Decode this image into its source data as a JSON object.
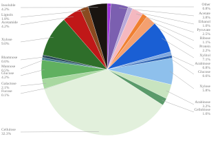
{
  "chart_data": {
    "type": "pie",
    "categories": [
      "Other",
      "Acetate",
      "Ethanol",
      "Pyruvate",
      "Ribose",
      "Protein",
      "Xylitol",
      "Arabinose",
      "Glucose",
      "Xylose",
      "Arabinose",
      "Cellobiose",
      "Cellulose",
      "Fucose",
      "Galactose",
      "Glucose",
      "Mannose",
      "Rhamnose",
      "Xylose",
      "Acetamide",
      "Lignols",
      "Insoluble"
    ],
    "values": [
      0.8,
      3.8,
      1.0,
      2.5,
      1.1,
      2.2,
      7.1,
      0.8,
      0.6,
      5.8,
      3.2,
      1.6,
      32.3,
      0.1,
      2.1,
      4.2,
      0.5,
      0.6,
      9.0,
      4.2,
      1.8,
      4.2
    ],
    "value_labels": [
      "0.8%",
      "3.8%",
      "1.0%",
      "2.5%",
      "1.1%",
      "2.2%",
      "7.1%",
      "0.8%",
      "0.6%",
      "5.8%",
      "3.2%",
      "1.6%",
      "32.3%",
      "0.1%",
      "2.1%",
      "4.2%",
      "0.5%",
      "0.6%",
      "9.0%",
      "4.2%",
      "1.8%",
      "4.2%"
    ],
    "colors": [
      "#9b30d9",
      "#7b5fb0",
      "#b8a8d8",
      "#f4b8c0",
      "#f08030",
      "#f4a070",
      "#1a5fd4",
      "#7fa8e0",
      "#2a60b0",
      "#8ec0ec",
      "#c8e4c0",
      "#5a9a6a",
      "#e2f0dc",
      "#6aaa60",
      "#a8d8a0",
      "#60b060",
      "#3a7a8a",
      "#2a4a5a",
      "#2e6e2a",
      "#c01818",
      "#8a4a20",
      "#1a1410"
    ]
  }
}
